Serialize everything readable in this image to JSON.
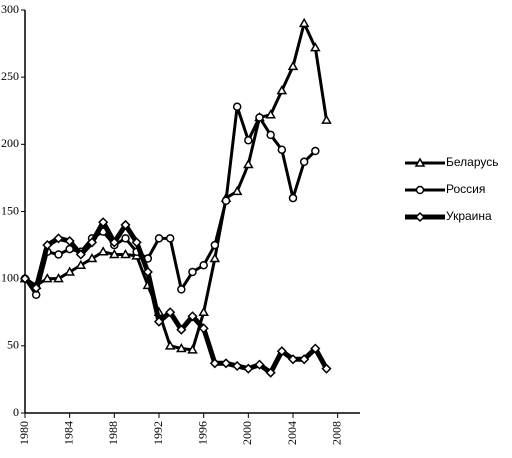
{
  "chart_data": {
    "type": "line",
    "x": [
      1980,
      1981,
      1982,
      1983,
      1984,
      1985,
      1986,
      1987,
      1988,
      1989,
      1990,
      1991,
      1992,
      1993,
      1994,
      1995,
      1996,
      1997,
      1998,
      1999,
      2000,
      2001,
      2002,
      2003,
      2004,
      2005,
      2006,
      2007
    ],
    "series": [
      {
        "name": "Беларусь",
        "color": "#000000",
        "marker": "triangle",
        "line_width": 3,
        "values": [
          100,
          95,
          100,
          100,
          105,
          110,
          115,
          120,
          118,
          118,
          117,
          95,
          75,
          50,
          48,
          47,
          75,
          115,
          160,
          165,
          185,
          220,
          222,
          240,
          258,
          290,
          272,
          218
        ]
      },
      {
        "name": "Россия",
        "color": "#000000",
        "marker": "circle",
        "line_width": 3,
        "values": [
          100,
          88,
          120,
          118,
          122,
          120,
          130,
          135,
          125,
          130,
          120,
          115,
          130,
          130,
          92,
          105,
          110,
          125,
          158,
          228,
          203,
          220,
          207,
          196,
          160,
          187,
          195,
          null
        ]
      },
      {
        "name": "Украина",
        "color": "#000000",
        "marker": "diamond",
        "line_width": 5,
        "values": [
          100,
          93,
          125,
          130,
          128,
          118,
          127,
          142,
          127,
          140,
          127,
          105,
          68,
          75,
          62,
          72,
          63,
          37,
          37,
          35,
          33,
          36,
          30,
          46,
          40,
          40,
          48,
          33
        ]
      }
    ],
    "xlim": [
      1980,
      2010
    ],
    "xticks": [
      1980,
      1984,
      1988,
      1992,
      1996,
      2000,
      2004,
      2008
    ],
    "ylim": [
      0,
      300
    ],
    "yticks": [
      0,
      50,
      100,
      150,
      200,
      250,
      300
    ]
  }
}
